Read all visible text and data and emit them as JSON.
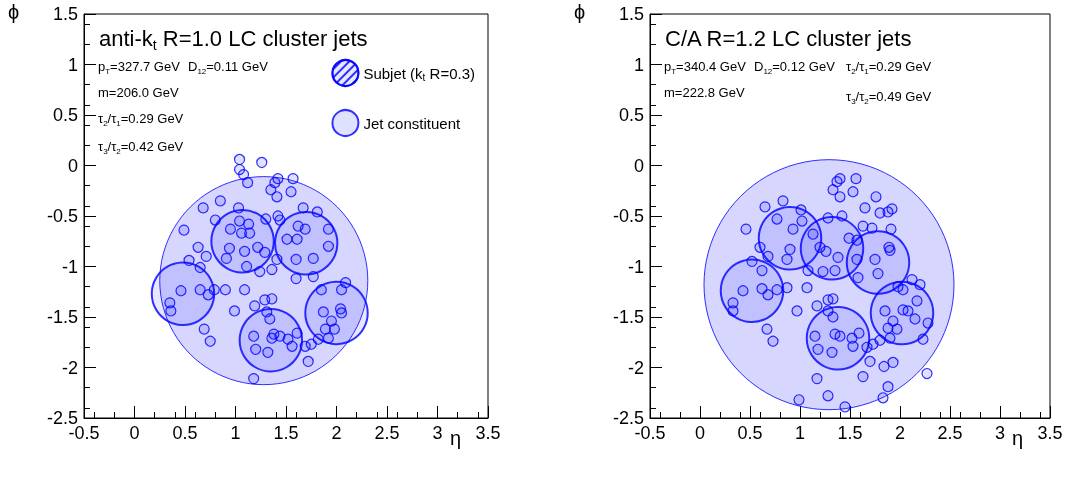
{
  "chart_data": [
    {
      "type": "scatter",
      "title": "anti-k$_{t}$ R=1.0 LC cluster jets",
      "xlabel": "η",
      "ylabel": "ϕ",
      "annotations": [
        "p$_{T}$=327.7 GeV",
        "D$_{12}$=0.11 GeV",
        "m=206.0 GeV",
        "τ$_{2}$/τ$_{1}$=0.29 GeV",
        "τ$_{3}$/τ$_{2}$=0.42 GeV"
      ],
      "xlim": [
        -0.5,
        3.5
      ],
      "ylim": [
        -2.5,
        1.5
      ],
      "xticks": [
        -0.5,
        0,
        0.5,
        1,
        1.5,
        2,
        2.5,
        3,
        3.5
      ],
      "yticks": [
        -2.5,
        -2,
        -1.5,
        -1,
        -0.5,
        0,
        0.5,
        1,
        1.5
      ],
      "grid": false,
      "legend": "top right",
      "marker": "circle",
      "series": [
        {
          "type": "bubble",
          "color": "#0000ff",
          "x": [
            1.28
          ],
          "values": [
            -1.14
          ],
          "sizes": [
            1
          ]
        },
        {
          "type": "bubble",
          "name": "Subjet (k$_{t}$ R=0.3)",
          "color": "#0000ff",
          "x": [
            1.07,
            1.7,
            0.48,
            1.35,
            2.0
          ],
          "values": [
            -0.75,
            -0.77,
            -1.27,
            -1.73,
            -1.46
          ],
          "sizes": [
            0.09,
            0.09,
            0.09,
            0.09,
            0.09
          ]
        },
        {
          "type": "scatter",
          "name": "Jet constituent",
          "color": "#0000ff",
          "x": [
            1.04,
            1.26,
            1.04,
            1.08,
            1.12,
            1.42,
            1.57,
            1.39,
            1.35,
            1.55,
            1.41,
            0.85,
            0.68,
            1.03,
            1.67,
            1.81,
            0.8,
            1.42,
            1.44,
            1.3,
            1.04,
            1.13,
            0.49,
            0.95,
            1.14,
            1.06,
            1.62,
            1.69,
            1.92,
            1.51,
            1.61,
            0.63,
            0.94,
            1.09,
            1.22,
            1.29,
            1.92,
            0.71,
            0.91,
            0.54,
            1.41,
            1.6,
            1.77,
            0.65,
            1.11,
            1.24,
            1.36,
            1.6,
            1.77,
            2.09,
            0.9,
            1.09,
            0.46,
            0.65,
            0.73,
            0.79,
            1.85,
            2.05,
            1.29,
            1.36,
            0.35,
            0.36,
            1.19,
            0.99,
            1.31,
            1.87,
            2.04,
            2.05,
            1.34,
            1.95,
            0.69,
            1.89,
            1.98,
            1.38,
            1.44,
            1.36,
            1.61,
            1.18,
            1.52,
            1.92,
            1.82,
            0.75,
            1.56,
            1.69,
            1.75,
            1.2,
            1.32,
            1.72,
            1.18
          ],
          "values": [
            0.06,
            0.03,
            -0.04,
            -0.09,
            -0.17,
            -0.13,
            -0.13,
            -0.17,
            -0.24,
            -0.26,
            -0.31,
            -0.35,
            -0.42,
            -0.42,
            -0.42,
            -0.46,
            -0.54,
            -0.5,
            -0.54,
            -0.53,
            -0.55,
            -0.58,
            -0.64,
            -0.63,
            -0.67,
            -0.67,
            -0.6,
            -0.63,
            -0.63,
            -0.73,
            -0.73,
            -0.81,
            -0.82,
            -0.85,
            -0.81,
            -0.86,
            -0.8,
            -0.9,
            -0.92,
            -0.94,
            -0.93,
            -0.93,
            -0.92,
            -1.01,
            -1.0,
            -1.05,
            -1.03,
            -1.12,
            -1.1,
            -1.16,
            -1.23,
            -1.23,
            -1.24,
            -1.23,
            -1.28,
            -1.23,
            -1.23,
            -1.23,
            -1.33,
            -1.32,
            -1.36,
            -1.44,
            -1.39,
            -1.44,
            -1.45,
            -1.45,
            -1.42,
            -1.46,
            -1.52,
            -1.54,
            -1.62,
            -1.62,
            -1.62,
            -1.67,
            -1.69,
            -1.71,
            -1.66,
            -1.69,
            -1.72,
            -1.71,
            -1.72,
            -1.74,
            -1.79,
            -1.79,
            -1.77,
            -1.82,
            -1.85,
            -1.94,
            -2.11
          ]
        }
      ]
    },
    {
      "type": "scatter",
      "title": "C/A R=1.2 LC cluster jets",
      "xlabel": "η",
      "ylabel": "ϕ",
      "annotations": [
        "p$_{T}$=340.4 GeV",
        "D$_{12}$=0.12 GeV",
        "τ$_{2}$/τ$_{1}$=0.29 GeV",
        "m=222.8 GeV",
        "τ$_{3}$/τ$_{2}$=0.49 GeV"
      ],
      "xlim": [
        -0.5,
        3.5
      ],
      "ylim": [
        -2.5,
        1.5
      ],
      "xticks": [
        -0.5,
        0,
        0.5,
        1,
        1.5,
        2,
        2.5,
        3,
        3.5
      ],
      "yticks": [
        -2.5,
        -2,
        -1.5,
        -1,
        -0.5,
        0,
        0.5,
        1,
        1.5
      ],
      "grid": false,
      "marker": "circle",
      "series": [
        {
          "type": "bubble",
          "color": "#0000ff",
          "x": [
            1.29
          ],
          "values": [
            -1.18
          ],
          "sizes": [
            1
          ]
        },
        {
          "type": "bubble",
          "color": "#0000ff",
          "x": [
            0.52,
            0.9,
            1.32,
            1.78,
            2.02,
            1.38
          ],
          "values": [
            -1.24,
            -0.72,
            -0.82,
            -0.96,
            -1.46,
            -1.71
          ],
          "sizes": [
            0.0625,
            0.0625,
            0.0625,
            0.0625,
            0.0625,
            0.0625
          ]
        },
        {
          "type": "scatter",
          "color": "#0000ff",
          "x": [
            1.4,
            1.56,
            1.37,
            1.33,
            1.53,
            1.4,
            1.76,
            0.83,
            0.65,
            1.65,
            1.8,
            1.92,
            1.88,
            1.01,
            1.42,
            0.77,
            1.02,
            1.28,
            0.46,
            0.93,
            1.13,
            1.63,
            1.72,
            1.91,
            1.49,
            1.57,
            0.6,
            0.68,
            0.9,
            1.2,
            1.26,
            1.38,
            1.89,
            1.9,
            0.87,
            0.52,
            1.57,
            1.75,
            1.08,
            1.23,
            1.35,
            0.62,
            1.58,
            1.78,
            2.12,
            2.2,
            1.98,
            0.87,
            1.07,
            0.43,
            0.62,
            0.68,
            0.77,
            0.33,
            0.33,
            1.17,
            1.28,
            1.33,
            0.97,
            1.28,
            1.33,
            2.03,
            2.17,
            1.85,
            2.03,
            2.08,
            2.15,
            1.93,
            2.28,
            1.88,
            1.97,
            0.67,
            0.73,
            1.15,
            1.35,
            1.4,
            1.52,
            1.59,
            1.53,
            1.18,
            1.32,
            1.9,
            2.23,
            1.8,
            1.73,
            1.67,
            1.7,
            1.84,
            1.93,
            2.27,
            1.17,
            1.63,
            1.88,
            1.83,
            0.99,
            1.28,
            1.45
          ],
          "values": [
            -0.13,
            -0.13,
            -0.16,
            -0.24,
            -0.26,
            -0.31,
            -0.31,
            -0.35,
            -0.41,
            -0.42,
            -0.47,
            -0.43,
            -0.46,
            -0.44,
            -0.5,
            -0.53,
            -0.55,
            -0.52,
            -0.63,
            -0.63,
            -0.68,
            -0.6,
            -0.62,
            -0.63,
            -0.72,
            -0.74,
            -0.81,
            -0.9,
            -0.83,
            -0.81,
            -0.85,
            -0.91,
            -0.81,
            -0.84,
            -0.93,
            -0.95,
            -0.93,
            -0.93,
            -1.04,
            -1.05,
            -1.04,
            -1.04,
            -1.11,
            -1.07,
            -1.13,
            -1.18,
            -1.2,
            -1.21,
            -1.21,
            -1.24,
            -1.22,
            -1.28,
            -1.23,
            -1.36,
            -1.44,
            -1.39,
            -1.33,
            -1.32,
            -1.44,
            -1.44,
            -1.5,
            -1.23,
            -1.34,
            -1.44,
            -1.43,
            -1.44,
            -1.52,
            -1.54,
            -1.56,
            -1.61,
            -1.62,
            -1.62,
            -1.74,
            -1.69,
            -1.67,
            -1.69,
            -1.71,
            -1.66,
            -1.79,
            -1.82,
            -1.85,
            -1.71,
            -1.72,
            -1.73,
            -1.77,
            -1.8,
            -1.94,
            -1.99,
            -1.95,
            -2.06,
            -2.11,
            -2.09,
            -2.19,
            -2.3,
            -2.32,
            -2.28,
            -2.39
          ]
        }
      ]
    }
  ]
}
